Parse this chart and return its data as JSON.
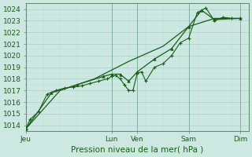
{
  "xlabel": "Pression niveau de la mer( hPa )",
  "ylim": [
    1013.5,
    1024.5
  ],
  "yticks": [
    1014,
    1015,
    1016,
    1017,
    1018,
    1019,
    1020,
    1021,
    1022,
    1023,
    1024
  ],
  "bg_color": "#cce8e0",
  "grid_color_major": "#aacccc",
  "grid_color_minor": "#bbdddd",
  "line_color": "#1a5c1a",
  "x_tick_labels": [
    "Jeu",
    "Lun",
    "Ven",
    "Sam",
    "Dim"
  ],
  "x_tick_positions": [
    0,
    10,
    13,
    19,
    25
  ],
  "xlim": [
    0,
    26
  ],
  "series1_x": [
    0,
    0.5,
    1.5,
    2.5,
    3.5,
    4.5,
    5.5,
    6.5,
    7.5,
    8.5,
    9.5,
    10,
    10.5,
    11,
    11.5,
    12,
    12.5,
    13,
    13.5,
    14,
    15,
    16,
    17,
    18,
    19,
    20,
    21,
    22,
    23,
    24,
    25
  ],
  "series1_y": [
    1013.7,
    1014.5,
    1015.2,
    1016.7,
    1017.0,
    1017.2,
    1017.3,
    1017.4,
    1017.6,
    1017.8,
    1018.0,
    1018.2,
    1018.3,
    1018.0,
    1017.5,
    1017.0,
    1017.0,
    1018.5,
    1018.6,
    1017.8,
    1019.0,
    1019.3,
    1020.0,
    1021.1,
    1021.5,
    1023.7,
    1024.1,
    1023.0,
    1023.3,
    1023.2,
    1023.2
  ],
  "series2_x": [
    0,
    3,
    6,
    9,
    10,
    11,
    12,
    13,
    15,
    17,
    19,
    20.5,
    22,
    25
  ],
  "series2_y": [
    1013.7,
    1016.8,
    1017.5,
    1018.2,
    1018.4,
    1018.4,
    1017.8,
    1018.6,
    1019.7,
    1020.6,
    1022.5,
    1023.9,
    1023.1,
    1023.2
  ],
  "series3_x": [
    0,
    4,
    8,
    12,
    16,
    19,
    22,
    25
  ],
  "series3_y": [
    1013.7,
    1017.0,
    1018.0,
    1019.5,
    1020.8,
    1022.5,
    1023.2,
    1023.2
  ]
}
